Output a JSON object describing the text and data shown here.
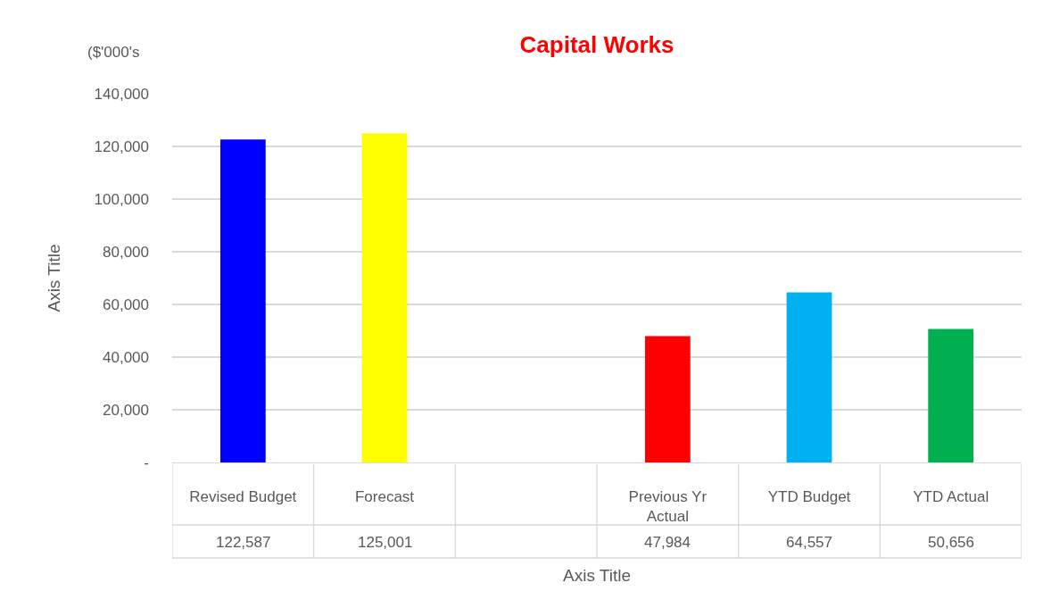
{
  "chart_data": {
    "type": "bar",
    "title": "Capital Works",
    "xlabel": "Axis Title",
    "ylabel": "Axis Title",
    "annotations": [
      "($'000's"
    ],
    "categories": [
      "Revised Budget",
      "Forecast",
      null,
      "Previous Yr Actual",
      "YTD Budget",
      "YTD Actual"
    ],
    "values": [
      122587,
      125001,
      null,
      47984,
      64557,
      50656
    ],
    "value_labels": [
      "122,587",
      "125,001",
      null,
      "47,984",
      "64,557",
      "50,656"
    ],
    "colors": [
      "#0000ff",
      "#ffff00",
      null,
      "#ff0000",
      "#00b0f0",
      "#00b050"
    ],
    "ylim": [
      0,
      140000
    ],
    "yticks": [
      {
        "value": 0,
        "label": "-"
      },
      {
        "value": 20000,
        "label": "20,000"
      },
      {
        "value": 40000,
        "label": "40,000"
      },
      {
        "value": 60000,
        "label": "60,000"
      },
      {
        "value": 80000,
        "label": "80,000"
      },
      {
        "value": 100000,
        "label": "100,000"
      },
      {
        "value": 120000,
        "label": "120,000"
      },
      {
        "value": 140000,
        "label": "140,000"
      }
    ],
    "grid": "y"
  }
}
